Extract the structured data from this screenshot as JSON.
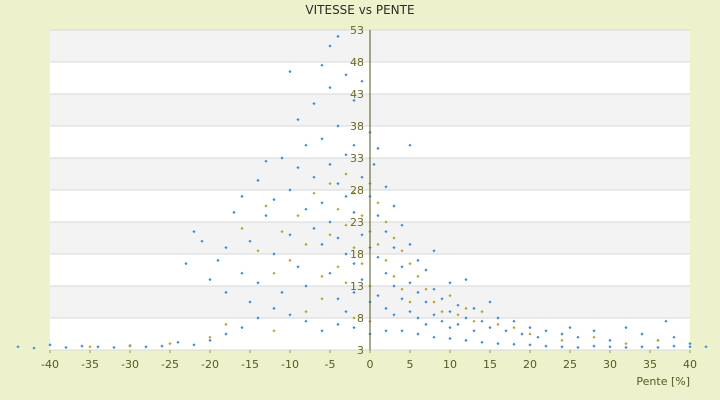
{
  "chart_data": {
    "type": "scatter",
    "title": "VITESSE vs PENTE",
    "xlabel": "Pente [%]",
    "ylabel": "",
    "xlim": [
      -40,
      40
    ],
    "ylim": [
      3,
      53
    ],
    "x_ticks": [
      -40,
      -35,
      -30,
      -25,
      -20,
      -15,
      -10,
      -5,
      0,
      5,
      10,
      15,
      20,
      25,
      30,
      35,
      40
    ],
    "y_ticks": [
      3,
      8,
      13,
      18,
      23,
      28,
      33,
      38,
      43,
      48,
      53
    ],
    "grid": true,
    "legend": "none",
    "colors": {
      "primary": "#3a8fd6",
      "secondary": "#b8a829",
      "band": "#f3f3f3",
      "plot_bg": "#ffffff",
      "page_bg": "#eef2cc"
    },
    "series": [
      {
        "color": "#3a8fd6",
        "points": [
          [
            -44,
            3.5
          ],
          [
            -42,
            3.3
          ],
          [
            -40,
            3.8
          ],
          [
            -38,
            3.4
          ],
          [
            -36,
            3.6
          ],
          [
            -34,
            3.5
          ],
          [
            -32,
            3.4
          ],
          [
            -30,
            3.7
          ],
          [
            -28,
            3.5
          ],
          [
            -26,
            3.6
          ],
          [
            -24,
            4.2
          ],
          [
            -22,
            3.8
          ],
          [
            -20,
            4.5
          ],
          [
            -18,
            5.5
          ],
          [
            -16,
            6.5
          ],
          [
            -14,
            8.0
          ],
          [
            -12,
            9.5
          ],
          [
            -10,
            8.5
          ],
          [
            -8,
            7.5
          ],
          [
            -6,
            6.0
          ],
          [
            -4,
            7.0
          ],
          [
            -2,
            6.5
          ],
          [
            0,
            5.5
          ],
          [
            2,
            6.0
          ],
          [
            4,
            6.0
          ],
          [
            6,
            5.5
          ],
          [
            8,
            5.0
          ],
          [
            10,
            4.8
          ],
          [
            12,
            4.5
          ],
          [
            14,
            4.2
          ],
          [
            16,
            4.0
          ],
          [
            18,
            3.9
          ],
          [
            20,
            3.8
          ],
          [
            22,
            3.6
          ],
          [
            24,
            3.5
          ],
          [
            26,
            3.4
          ],
          [
            28,
            3.6
          ],
          [
            30,
            3.5
          ],
          [
            32,
            3.4
          ],
          [
            34,
            3.5
          ],
          [
            36,
            3.4
          ],
          [
            38,
            3.6
          ],
          [
            40,
            3.5
          ],
          [
            42,
            3.5
          ],
          [
            44,
            3.4
          ],
          [
            -22,
            21.5
          ],
          [
            -23,
            16.5
          ],
          [
            -21,
            20.0
          ],
          [
            -20,
            14.0
          ],
          [
            -19,
            17.0
          ],
          [
            -18,
            12.0
          ],
          [
            -18,
            19.0
          ],
          [
            -17,
            24.5
          ],
          [
            -16,
            15.0
          ],
          [
            -16,
            27.0
          ],
          [
            -15,
            10.5
          ],
          [
            -15,
            20.0
          ],
          [
            -14,
            29.5
          ],
          [
            -14,
            13.5
          ],
          [
            -13,
            24.0
          ],
          [
            -13,
            32.5
          ],
          [
            -12,
            18.0
          ],
          [
            -12,
            26.5
          ],
          [
            -11,
            12.0
          ],
          [
            -11,
            33.0
          ],
          [
            -10,
            46.5
          ],
          [
            -10,
            21.0
          ],
          [
            -10,
            28.0
          ],
          [
            -9,
            39.0
          ],
          [
            -9,
            16.0
          ],
          [
            -9,
            31.5
          ],
          [
            -8,
            25.0
          ],
          [
            -8,
            35.0
          ],
          [
            -8,
            13.0
          ],
          [
            -7,
            41.5
          ],
          [
            -7,
            22.0
          ],
          [
            -7,
            30.0
          ],
          [
            -6,
            47.5
          ],
          [
            -6,
            19.5
          ],
          [
            -6,
            36.0
          ],
          [
            -6,
            26.0
          ],
          [
            -5,
            50.5
          ],
          [
            -5,
            44.0
          ],
          [
            -5,
            32.0
          ],
          [
            -5,
            23.0
          ],
          [
            -5,
            15.0
          ],
          [
            -4,
            52.0
          ],
          [
            -4,
            38.0
          ],
          [
            -4,
            29.0
          ],
          [
            -4,
            20.5
          ],
          [
            -4,
            11.0
          ],
          [
            -3,
            46.0
          ],
          [
            -3,
            33.5
          ],
          [
            -3,
            27.0
          ],
          [
            -3,
            18.0
          ],
          [
            -3,
            9.0
          ],
          [
            -2,
            42.0
          ],
          [
            -2,
            35.0
          ],
          [
            -2,
            24.5
          ],
          [
            -2,
            16.5
          ],
          [
            -2,
            12.0
          ],
          [
            -1,
            45.0
          ],
          [
            -1,
            30.0
          ],
          [
            -1,
            21.0
          ],
          [
            -1,
            14.0
          ],
          [
            0,
            37.0
          ],
          [
            0,
            27.0
          ],
          [
            0,
            19.0
          ],
          [
            0,
            10.5
          ],
          [
            0.5,
            32.0
          ],
          [
            1,
            34.5
          ],
          [
            1,
            24.0
          ],
          [
            1,
            17.5
          ],
          [
            1,
            11.5
          ],
          [
            2,
            28.5
          ],
          [
            2,
            21.5
          ],
          [
            2,
            15.0
          ],
          [
            2,
            9.5
          ],
          [
            3,
            25.5
          ],
          [
            3,
            19.0
          ],
          [
            3,
            13.0
          ],
          [
            3,
            8.5
          ],
          [
            4,
            22.5
          ],
          [
            4,
            16.0
          ],
          [
            4,
            11.0
          ],
          [
            5,
            35.0
          ],
          [
            5,
            19.5
          ],
          [
            5,
            13.5
          ],
          [
            5,
            9.0
          ],
          [
            6,
            17.0
          ],
          [
            6,
            12.0
          ],
          [
            6,
            8.0
          ],
          [
            7,
            15.5
          ],
          [
            7,
            10.5
          ],
          [
            7,
            7.0
          ],
          [
            8,
            18.5
          ],
          [
            8,
            12.5
          ],
          [
            8,
            8.5
          ],
          [
            9,
            11.0
          ],
          [
            9,
            7.5
          ],
          [
            10,
            13.5
          ],
          [
            10,
            9.0
          ],
          [
            10,
            6.5
          ],
          [
            11,
            10.0
          ],
          [
            11,
            7.0
          ],
          [
            12,
            14.0
          ],
          [
            12,
            8.0
          ],
          [
            13,
            9.5
          ],
          [
            13,
            6.0
          ],
          [
            14,
            7.5
          ],
          [
            15,
            10.5
          ],
          [
            15,
            6.5
          ],
          [
            16,
            8.0
          ],
          [
            17,
            6.0
          ],
          [
            18,
            7.5
          ],
          [
            19,
            5.5
          ],
          [
            20,
            6.5
          ],
          [
            21,
            5.0
          ],
          [
            22,
            6.0
          ],
          [
            24,
            5.5
          ],
          [
            25,
            6.5
          ],
          [
            26,
            5.0
          ],
          [
            28,
            6.0
          ],
          [
            30,
            4.5
          ],
          [
            32,
            6.5
          ],
          [
            34,
            5.5
          ],
          [
            36,
            4.5
          ],
          [
            37,
            7.5
          ],
          [
            38,
            5.0
          ],
          [
            40,
            4.0
          ]
        ]
      },
      {
        "color": "#b8a829",
        "points": [
          [
            -16,
            22.0
          ],
          [
            -14,
            18.5
          ],
          [
            -13,
            25.5
          ],
          [
            -12,
            15.0
          ],
          [
            -11,
            21.5
          ],
          [
            -10,
            17.0
          ],
          [
            -9,
            24.0
          ],
          [
            -8,
            19.5
          ],
          [
            -7,
            27.5
          ],
          [
            -6,
            14.5
          ],
          [
            -5,
            29.0
          ],
          [
            -5,
            21.0
          ],
          [
            -4,
            25.0
          ],
          [
            -4,
            16.0
          ],
          [
            -3,
            30.5
          ],
          [
            -3,
            22.5
          ],
          [
            -3,
            13.5
          ],
          [
            -2,
            27.5
          ],
          [
            -2,
            19.0
          ],
          [
            -1,
            24.0
          ],
          [
            -1,
            16.5
          ],
          [
            0,
            29.0
          ],
          [
            0,
            21.5
          ],
          [
            0,
            13.0
          ],
          [
            1,
            26.0
          ],
          [
            1,
            19.5
          ],
          [
            2,
            23.0
          ],
          [
            2,
            17.0
          ],
          [
            3,
            20.5
          ],
          [
            3,
            14.5
          ],
          [
            4,
            18.5
          ],
          [
            4,
            12.5
          ],
          [
            5,
            16.5
          ],
          [
            5,
            10.5
          ],
          [
            6,
            14.5
          ],
          [
            7,
            12.5
          ],
          [
            8,
            10.5
          ],
          [
            9,
            9.0
          ],
          [
            10,
            11.5
          ],
          [
            11,
            8.5
          ],
          [
            12,
            9.5
          ],
          [
            13,
            7.5
          ],
          [
            14,
            9.0
          ],
          [
            16,
            7.0
          ],
          [
            18,
            6.5
          ],
          [
            20,
            5.5
          ],
          [
            24,
            4.5
          ],
          [
            28,
            5.0
          ],
          [
            32,
            4.0
          ],
          [
            36,
            4.5
          ],
          [
            -20,
            5.0
          ],
          [
            -25,
            4.0
          ],
          [
            -30,
            3.6
          ],
          [
            -35,
            3.5
          ],
          [
            -18,
            7.0
          ],
          [
            -12,
            6.0
          ],
          [
            -8,
            9.0
          ],
          [
            -6,
            11.0
          ],
          [
            -2,
            8.0
          ],
          [
            0,
            7.5
          ]
        ]
      }
    ]
  }
}
